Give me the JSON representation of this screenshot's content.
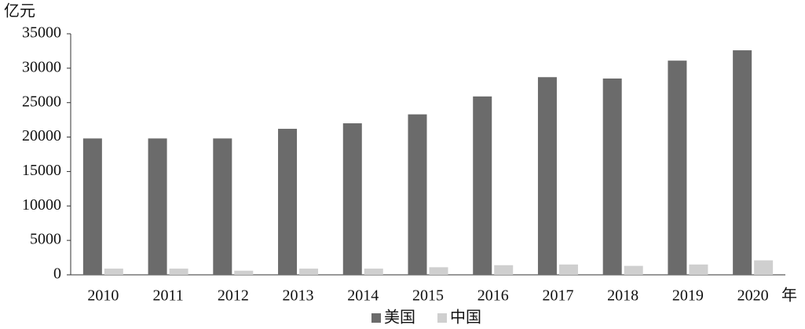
{
  "chart_data": {
    "type": "bar",
    "y_label": "亿元",
    "x_label": "年",
    "categories": [
      "2010",
      "2011",
      "2012",
      "2013",
      "2014",
      "2015",
      "2016",
      "2017",
      "2018",
      "2019",
      "2020"
    ],
    "series": [
      {
        "name": "美国",
        "color": "#6b6b6b",
        "values": [
          19800,
          19800,
          19800,
          21200,
          22000,
          23300,
          25900,
          28700,
          28500,
          31100,
          32600
        ]
      },
      {
        "name": "中国",
        "color": "#cfcfcf",
        "values": [
          900,
          900,
          600,
          900,
          900,
          1100,
          1400,
          1500,
          1300,
          1500,
          2100
        ]
      }
    ],
    "ylim": [
      0,
      35000
    ],
    "yticks": [
      0,
      5000,
      10000,
      15000,
      20000,
      25000,
      30000,
      35000
    ],
    "legend": "bottom"
  }
}
